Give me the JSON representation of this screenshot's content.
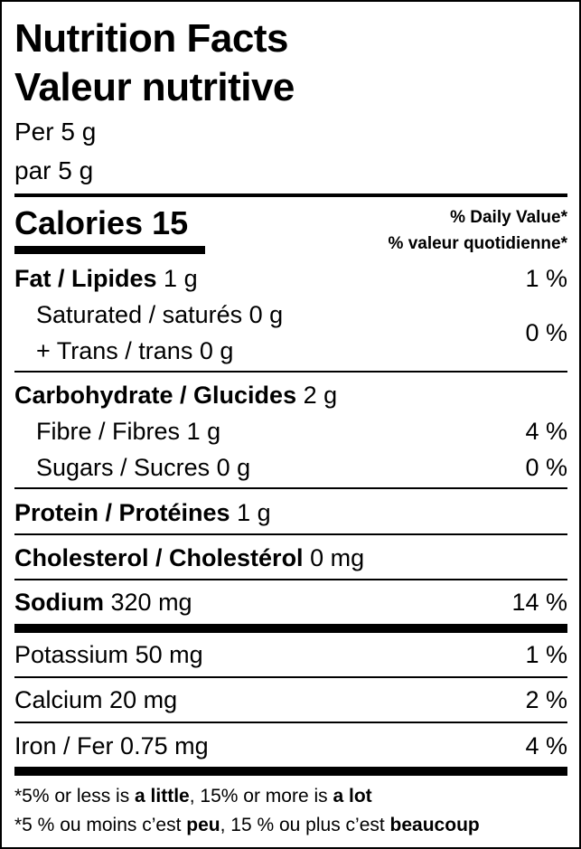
{
  "title_en": "Nutrition Facts",
  "title_fr": "Valeur nutritive",
  "serving_en": "Per 5 g",
  "serving_fr": "par 5 g",
  "calories": {
    "label": "Calories 15"
  },
  "dv_header": {
    "en": "% Daily Value*",
    "fr": "% valeur quotidienne*"
  },
  "rows": [
    {
      "name": "Fat / Lipides",
      "amount": "1 g",
      "dv": "1 %"
    },
    {
      "name": "Saturated / saturés",
      "amount": "0 g"
    },
    {
      "name": "+ Trans / trans",
      "amount": "0 g",
      "dv": "0 %"
    },
    {
      "name": "Carbohydrate / Glucides",
      "amount": "2 g"
    },
    {
      "name": "Fibre / Fibres",
      "amount": "1 g",
      "dv": "4 %"
    },
    {
      "name": "Sugars / Sucres",
      "amount": "0 g",
      "dv": "0 %"
    },
    {
      "name": "Protein / Protéines",
      "amount": "1 g"
    },
    {
      "name": "Cholesterol / Cholestérol",
      "amount": "0 mg"
    },
    {
      "name": "Sodium",
      "amount": "320 mg",
      "dv": "14 %"
    },
    {
      "name": "Potassium",
      "amount": "50 mg",
      "dv": "1 %"
    },
    {
      "name": "Calcium",
      "amount": "20 mg",
      "dv": "2 %"
    },
    {
      "name": "Iron / Fer",
      "amount": "0.75 mg",
      "dv": "4 %"
    }
  ],
  "footnote_en": {
    "a": "*5% or less is ",
    "b": "a little",
    "c": ", 15% or more is ",
    "d": "a lot"
  },
  "footnote_fr": {
    "a": "*5 % ou moins c’est ",
    "b": "peu",
    "c": ", 15 % ou plus c’est ",
    "d": "beaucoup"
  }
}
